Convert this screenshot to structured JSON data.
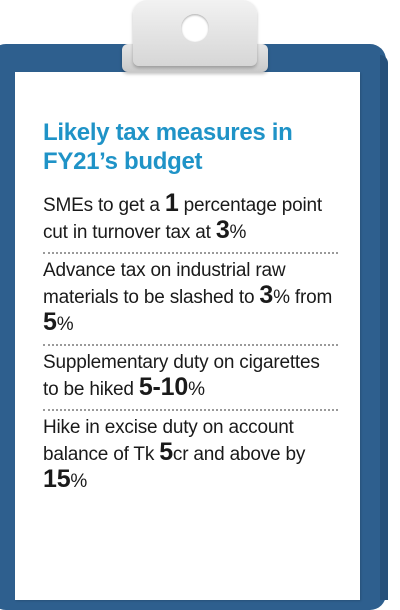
{
  "title": "Likely tax measures in FY21’s budget",
  "items": [
    {
      "segments": [
        {
          "text": "SMEs to get a ",
          "big": false
        },
        {
          "text": "1",
          "big": true
        },
        {
          "text": " percentage point cut in turnover tax at ",
          "big": false
        },
        {
          "text": "3",
          "big": true
        },
        {
          "text": "%",
          "big": false
        }
      ]
    },
    {
      "segments": [
        {
          "text": "Advance tax on industrial raw materials to be slashed to ",
          "big": false
        },
        {
          "text": "3",
          "big": true
        },
        {
          "text": "% from ",
          "big": false
        },
        {
          "text": "5",
          "big": true
        },
        {
          "text": "%",
          "big": false
        }
      ]
    },
    {
      "segments": [
        {
          "text": "Supplementary duty on cigarettes to be hiked ",
          "big": false
        },
        {
          "text": "5-10",
          "big": true
        },
        {
          "text": "%",
          "big": false
        }
      ]
    },
    {
      "segments": [
        {
          "text": "Hike in excise duty on account balance of Tk ",
          "big": false
        },
        {
          "text": "5",
          "big": true
        },
        {
          "text": "cr and above by ",
          "big": false
        },
        {
          "text": "15",
          "big": true
        },
        {
          "text": "%",
          "big": false
        }
      ]
    }
  ],
  "colors": {
    "title": "#1f93c7",
    "board": "#2e5f8e",
    "text": "#1a1a1a"
  }
}
